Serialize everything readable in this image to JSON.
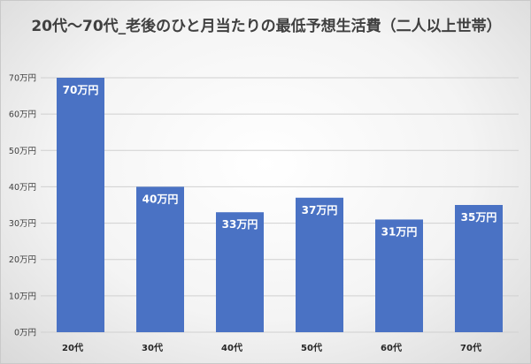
{
  "chart_data": {
    "type": "bar",
    "title": "20代～70代_老後のひと月当たりの最低予想生活費（二人以上世帯）",
    "categories": [
      "20代",
      "30代",
      "40代",
      "50代",
      "60代",
      "70代"
    ],
    "values": [
      70,
      40,
      33,
      37,
      31,
      35
    ],
    "data_labels": [
      "70万円",
      "40万円",
      "33万円",
      "37万円",
      "31万円",
      "35万円"
    ],
    "y_ticks": [
      "0万円",
      "10万円",
      "20万円",
      "30万円",
      "40万円",
      "50万円",
      "60万円",
      "70万円"
    ],
    "ylim": [
      0,
      70
    ],
    "grid": true,
    "legend": "none",
    "colors": {
      "bar": "#4a72c4",
      "grid": "#d0d0d0"
    }
  }
}
